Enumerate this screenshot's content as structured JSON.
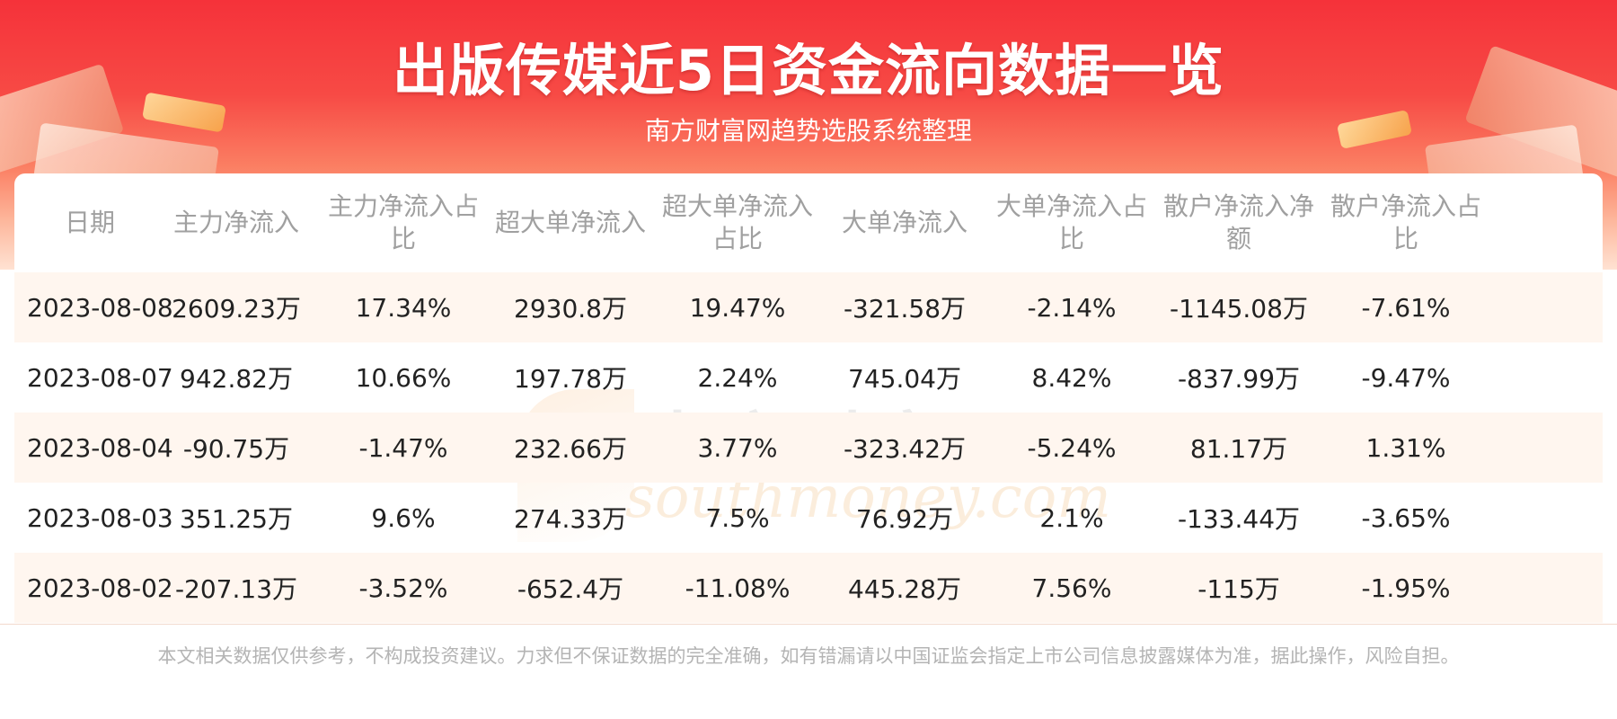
{
  "header": {
    "title": "出版传媒近5日资金流向数据一览",
    "subtitle": "南方财富网趋势选股系统整理"
  },
  "watermark": {
    "text": "南方财富网",
    "sub": "southmoney.com"
  },
  "table": {
    "columns": [
      "日期",
      "主力净流入",
      "主力净流入占比",
      "超大单净流入",
      "超大单净流入占比",
      "大单净流入",
      "大单净流入占比",
      "散户净流入净额",
      "散户净流入占比"
    ],
    "rows": [
      [
        "2023-08-08",
        "2609.23万",
        "17.34%",
        "2930.8万",
        "19.47%",
        "-321.58万",
        "-2.14%",
        "-1145.08万",
        "-7.61%"
      ],
      [
        "2023-08-07",
        "942.82万",
        "10.66%",
        "197.78万",
        "2.24%",
        "745.04万",
        "8.42%",
        "-837.99万",
        "-9.47%"
      ],
      [
        "2023-08-04",
        "-90.75万",
        "-1.47%",
        "232.66万",
        "3.77%",
        "-323.42万",
        "-5.24%",
        "81.17万",
        "1.31%"
      ],
      [
        "2023-08-03",
        "351.25万",
        "9.6%",
        "274.33万",
        "7.5%",
        "76.92万",
        "2.1%",
        "-133.44万",
        "-3.65%"
      ],
      [
        "2023-08-02",
        "-207.13万",
        "-3.52%",
        "-652.4万",
        "-11.08%",
        "445.28万",
        "7.56%",
        "-115万",
        "-1.95%"
      ]
    ]
  },
  "footer": {
    "disclaimer": "本文相关数据仅供参考，不构成投资建议。力求但不保证数据的完全准确，如有错漏请以中国证监会指定上市公司信息披露媒体为准，据此操作，风险自担。"
  }
}
